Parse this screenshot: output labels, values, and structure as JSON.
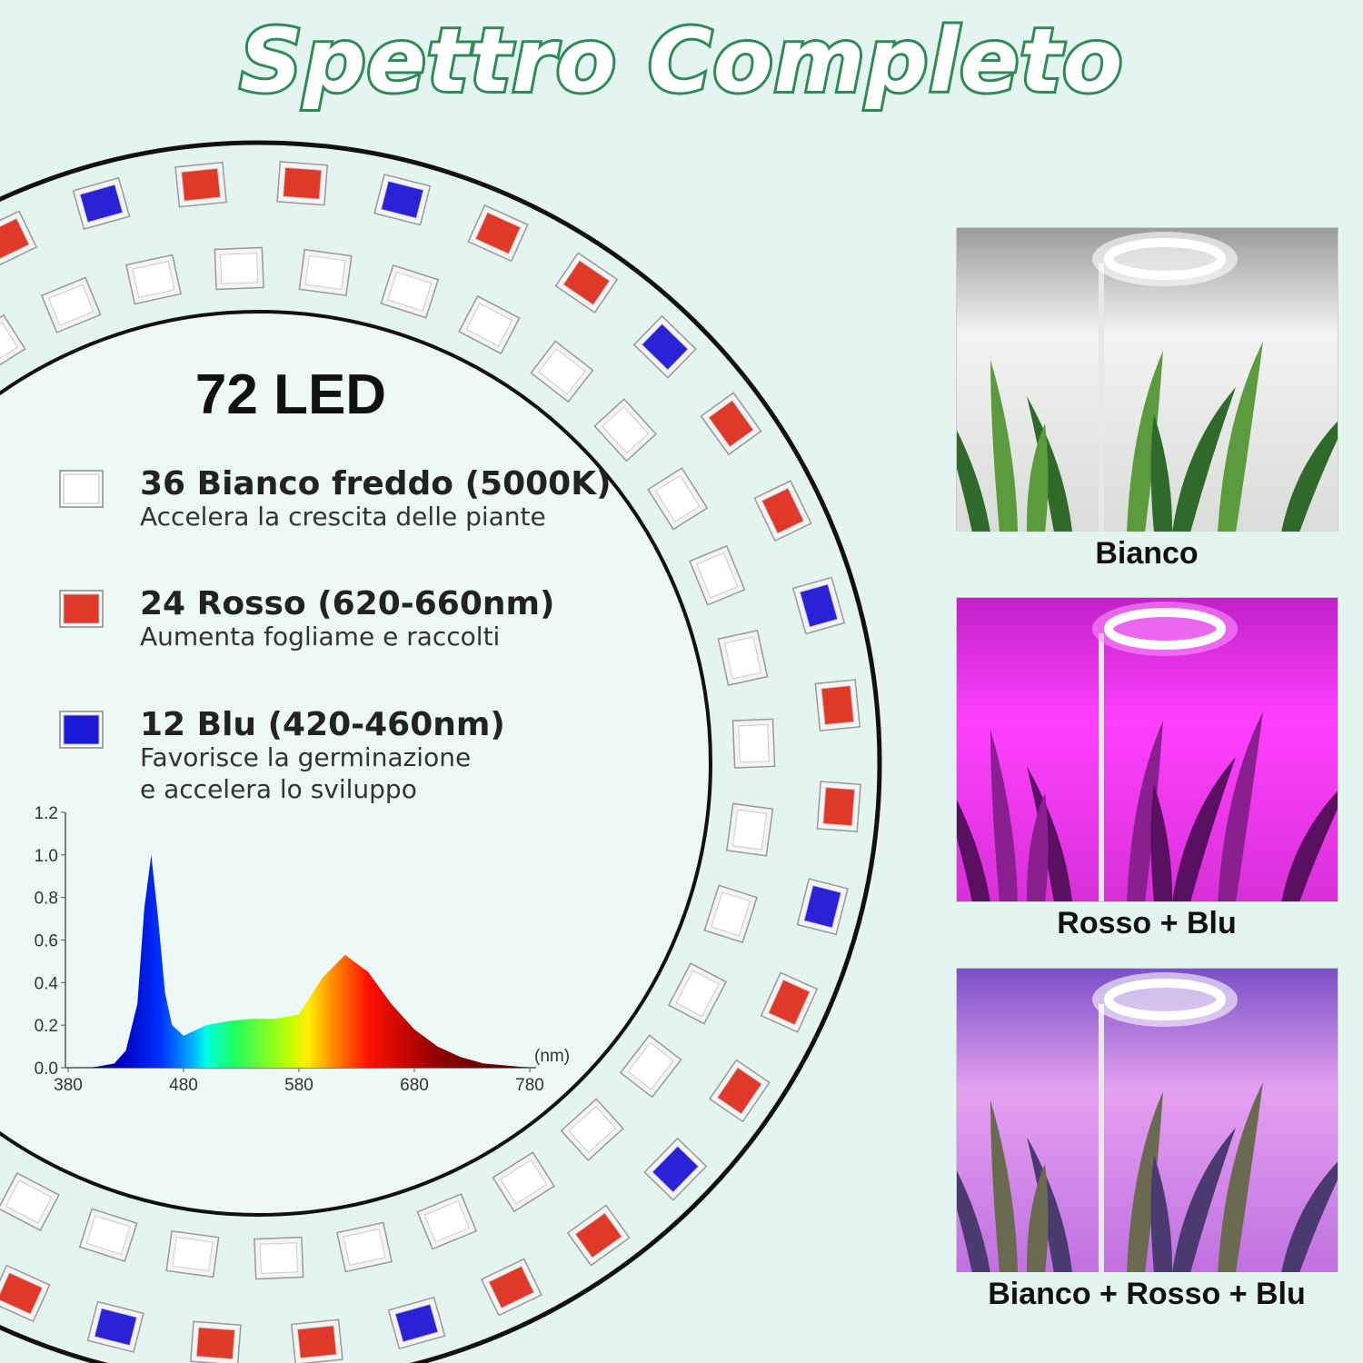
{
  "title": "Spettro Completo",
  "led_count": "72 LED",
  "legend": [
    {
      "label": "36 Bianco freddo (5000K)",
      "lines": [
        "Accelera la crescita delle piante"
      ],
      "color": "#ffffff"
    },
    {
      "label": "24 Rosso (620-660nm)",
      "lines": [
        "Aumenta fogliame e raccolti"
      ],
      "color": "#e0392a"
    },
    {
      "label": "12 Blu (420-460nm)",
      "lines": [
        "Favorisce la germinazione",
        "e accelera lo sviluppo"
      ],
      "color": "#1a1ad8"
    }
  ],
  "spectrum": {
    "type": "area",
    "x_unit": "(nm)",
    "x": [
      380,
      400,
      420,
      430,
      440,
      446,
      452,
      458,
      464,
      470,
      480,
      500,
      520,
      540,
      560,
      580,
      600,
      620,
      640,
      660,
      680,
      700,
      720,
      740,
      760,
      780
    ],
    "values": [
      0,
      0,
      0.02,
      0.08,
      0.3,
      0.75,
      1.0,
      0.7,
      0.35,
      0.2,
      0.15,
      0.2,
      0.22,
      0.23,
      0.23,
      0.25,
      0.42,
      0.53,
      0.45,
      0.3,
      0.18,
      0.1,
      0.05,
      0.02,
      0.01,
      0
    ],
    "xlim": [
      380,
      780
    ],
    "ylim": [
      0,
      1.2
    ],
    "xticks": [
      380,
      480,
      580,
      680,
      780
    ],
    "yticks": [
      {
        "value": 0,
        "label": "0.0"
      },
      0.2,
      0.4,
      0.6,
      0.8,
      {
        "value": 1,
        "label": "1.0"
      },
      1.2
    ]
  },
  "photos": [
    {
      "caption": "Bianco"
    },
    {
      "caption": "Rosso + Blu"
    },
    {
      "caption": "Bianco + Rosso + Blu"
    }
  ]
}
